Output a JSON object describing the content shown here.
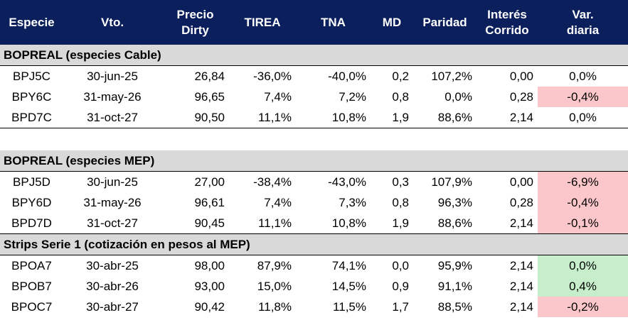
{
  "headers": {
    "especie": "Especie",
    "vto": "Vto.",
    "precio_1": "Precio",
    "precio_2": "Dirty",
    "tirea": "TIREA",
    "tna": "TNA",
    "md": "MD",
    "paridad": "Paridad",
    "interes_1": "Interés",
    "interes_2": "Corrido",
    "var_1": "Var.",
    "var_2": "diaria"
  },
  "sections": [
    {
      "title": "BOPREAL (especies Cable)",
      "rows": [
        {
          "especie": "BPJ5C",
          "vto": "30-jun-25",
          "precio": "26,84",
          "tirea": "-36,0%",
          "tna": "-40,0%",
          "md": "0,2",
          "paridad": "107,2%",
          "interes": "0,00",
          "var": "0,0%",
          "var_status": "neutral"
        },
        {
          "especie": "BPY6C",
          "vto": "31-may-26",
          "precio": "96,65",
          "tirea": "7,4%",
          "tna": "7,2%",
          "md": "0,8",
          "paridad": "0,0%",
          "interes": "0,28",
          "var": "-0,4%",
          "var_status": "negative"
        },
        {
          "especie": "BPD7C",
          "vto": "31-oct-27",
          "precio": "90,50",
          "tirea": "11,1%",
          "tna": "10,8%",
          "md": "1,9",
          "paridad": "88,6%",
          "interes": "2,14",
          "var": "0,0%",
          "var_status": "neutral"
        }
      ]
    },
    {
      "title": "BOPREAL (especies MEP)",
      "rows": [
        {
          "especie": "BPJ5D",
          "vto": "30-jun-25",
          "precio": "27,00",
          "tirea": "-38,4%",
          "tna": "-43,0%",
          "md": "0,3",
          "paridad": "107,9%",
          "interes": "0,00",
          "var": "-6,9%",
          "var_status": "negative"
        },
        {
          "especie": "BPY6D",
          "vto": "31-may-26",
          "precio": "96,61",
          "tirea": "7,4%",
          "tna": "7,3%",
          "md": "0,8",
          "paridad": "96,3%",
          "interes": "0,28",
          "var": "-0,4%",
          "var_status": "negative"
        },
        {
          "especie": "BPD7D",
          "vto": "31-oct-27",
          "precio": "90,45",
          "tirea": "11,1%",
          "tna": "10,8%",
          "md": "1,9",
          "paridad": "88,6%",
          "interes": "2,14",
          "var": "-0,1%",
          "var_status": "negative"
        }
      ]
    },
    {
      "title": "Strips Serie 1 (cotización en pesos al MEP)",
      "rows": [
        {
          "especie": "BPOA7",
          "vto": "30-abr-25",
          "precio": "98,00",
          "tirea": "87,9%",
          "tna": "74,1%",
          "md": "0,0",
          "paridad": "95,9%",
          "interes": "2,14",
          "var": "0,0%",
          "var_status": "positive"
        },
        {
          "especie": "BPOB7",
          "vto": "30-abr-26",
          "precio": "93,00",
          "tirea": "15,0%",
          "tna": "14,5%",
          "md": "0,9",
          "paridad": "91,1%",
          "interes": "2,14",
          "var": "0,4%",
          "var_status": "positive"
        },
        {
          "especie": "BPOC7",
          "vto": "30-abr-27",
          "precio": "90,42",
          "tirea": "11,8%",
          "tna": "11,5%",
          "md": "1,7",
          "paridad": "88,5%",
          "interes": "2,14",
          "var": "-0,2%",
          "var_status": "negative"
        }
      ]
    }
  ],
  "colors": {
    "header_bg": "#0a1f5c",
    "section_bg": "#d9d9d9",
    "negative_bg": "#fcc7cb",
    "negative_text": "#9c1c21",
    "positive_bg": "#c6eecb",
    "positive_text": "#1d6a2a"
  }
}
